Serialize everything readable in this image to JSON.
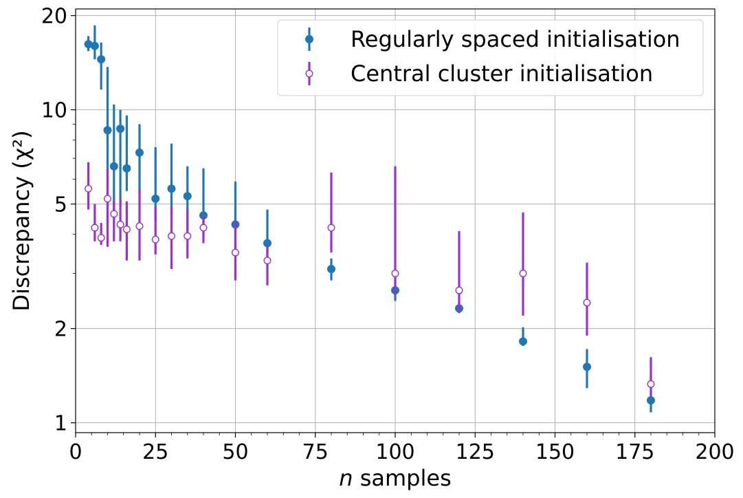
{
  "chart_data": {
    "type": "scatter",
    "xlabel_italic": "n",
    "xlabel_rest": " samples",
    "ylabel": "Discrepancy (χ²)",
    "xlim": [
      0,
      200
    ],
    "ylim": [
      0.93,
      21
    ],
    "yscale": "log",
    "x_ticks": [
      0,
      25,
      50,
      75,
      100,
      125,
      150,
      175,
      200
    ],
    "x_tick_labels": [
      "0",
      "25",
      "50",
      "75",
      "100",
      "125",
      "150",
      "175",
      "200"
    ],
    "y_ticks": [
      1,
      2,
      5,
      10,
      20
    ],
    "y_tick_labels": [
      "1",
      "2",
      "5",
      "10",
      "20"
    ],
    "grid": true,
    "legend_position": "top-right",
    "series": [
      {
        "name": "Regularly spaced initialisation",
        "color": "#1f77b4",
        "marker": "filled-circle",
        "points": [
          {
            "x": 4,
            "y": 16.2,
            "lo": 15.4,
            "hi": 17.2
          },
          {
            "x": 6,
            "y": 16.0,
            "lo": 14.5,
            "hi": 18.6
          },
          {
            "x": 8,
            "y": 14.5,
            "lo": 11.6,
            "hi": 16.4
          },
          {
            "x": 10,
            "y": 8.6,
            "lo": 4.3,
            "hi": 13.7
          },
          {
            "x": 12,
            "y": 6.6,
            "lo": 4.6,
            "hi": 10.4
          },
          {
            "x": 14,
            "y": 8.7,
            "lo": 4.9,
            "hi": 10.0
          },
          {
            "x": 16,
            "y": 6.5,
            "lo": 5.5,
            "hi": 9.6
          },
          {
            "x": 20,
            "y": 7.3,
            "lo": 5.4,
            "hi": 9.0
          },
          {
            "x": 25,
            "y": 5.2,
            "lo": 4.4,
            "hi": 7.6
          },
          {
            "x": 30,
            "y": 5.6,
            "lo": 4.6,
            "hi": 7.8
          },
          {
            "x": 35,
            "y": 5.3,
            "lo": 4.1,
            "hi": 6.6
          },
          {
            "x": 40,
            "y": 4.6,
            "lo": 4.0,
            "hi": 6.5
          },
          {
            "x": 50,
            "y": 4.3,
            "lo": 3.6,
            "hi": 5.9
          },
          {
            "x": 60,
            "y": 3.75,
            "lo": 3.2,
            "hi": 4.8
          },
          {
            "x": 80,
            "y": 3.1,
            "lo": 2.85,
            "hi": 3.35
          },
          {
            "x": 100,
            "y": 2.65,
            "lo": 2.45,
            "hi": 2.82
          },
          {
            "x": 120,
            "y": 2.32,
            "lo": 2.24,
            "hi": 2.42
          },
          {
            "x": 140,
            "y": 1.82,
            "lo": 1.76,
            "hi": 2.02
          },
          {
            "x": 160,
            "y": 1.51,
            "lo": 1.29,
            "hi": 1.72
          },
          {
            "x": 180,
            "y": 1.18,
            "lo": 1.08,
            "hi": 1.24
          }
        ]
      },
      {
        "name": "Central cluster initialisation",
        "color": "#9932cc",
        "marker": "open-circle",
        "points": [
          {
            "x": 4,
            "y": 5.6,
            "lo": 4.8,
            "hi": 6.8
          },
          {
            "x": 6,
            "y": 4.2,
            "lo": 3.8,
            "hi": 5.0
          },
          {
            "x": 8,
            "y": 3.9,
            "lo": 3.7,
            "hi": 4.35
          },
          {
            "x": 10,
            "y": 5.2,
            "lo": 3.65,
            "hi": 6.5
          },
          {
            "x": 12,
            "y": 4.65,
            "lo": 3.8,
            "hi": 5.1
          },
          {
            "x": 14,
            "y": 4.3,
            "lo": 3.8,
            "hi": 5.2
          },
          {
            "x": 16,
            "y": 4.15,
            "lo": 3.3,
            "hi": 5.1
          },
          {
            "x": 20,
            "y": 4.25,
            "lo": 3.3,
            "hi": 5.6
          },
          {
            "x": 25,
            "y": 3.85,
            "lo": 3.45,
            "hi": 4.9
          },
          {
            "x": 30,
            "y": 3.95,
            "lo": 3.1,
            "hi": 4.9
          },
          {
            "x": 35,
            "y": 3.95,
            "lo": 3.35,
            "hi": 4.8
          },
          {
            "x": 40,
            "y": 4.2,
            "lo": 3.75,
            "hi": 4.6
          },
          {
            "x": 50,
            "y": 3.5,
            "lo": 2.85,
            "hi": 4.45
          },
          {
            "x": 60,
            "y": 3.3,
            "lo": 2.75,
            "hi": 3.7
          },
          {
            "x": 80,
            "y": 4.2,
            "lo": 3.5,
            "hi": 6.3
          },
          {
            "x": 100,
            "y": 3.0,
            "lo": 2.55,
            "hi": 6.6
          },
          {
            "x": 120,
            "y": 2.65,
            "lo": 2.25,
            "hi": 4.1
          },
          {
            "x": 140,
            "y": 3.0,
            "lo": 2.2,
            "hi": 4.7
          },
          {
            "x": 160,
            "y": 2.42,
            "lo": 1.9,
            "hi": 3.25
          },
          {
            "x": 180,
            "y": 1.33,
            "lo": 1.22,
            "hi": 1.62
          }
        ]
      }
    ]
  }
}
